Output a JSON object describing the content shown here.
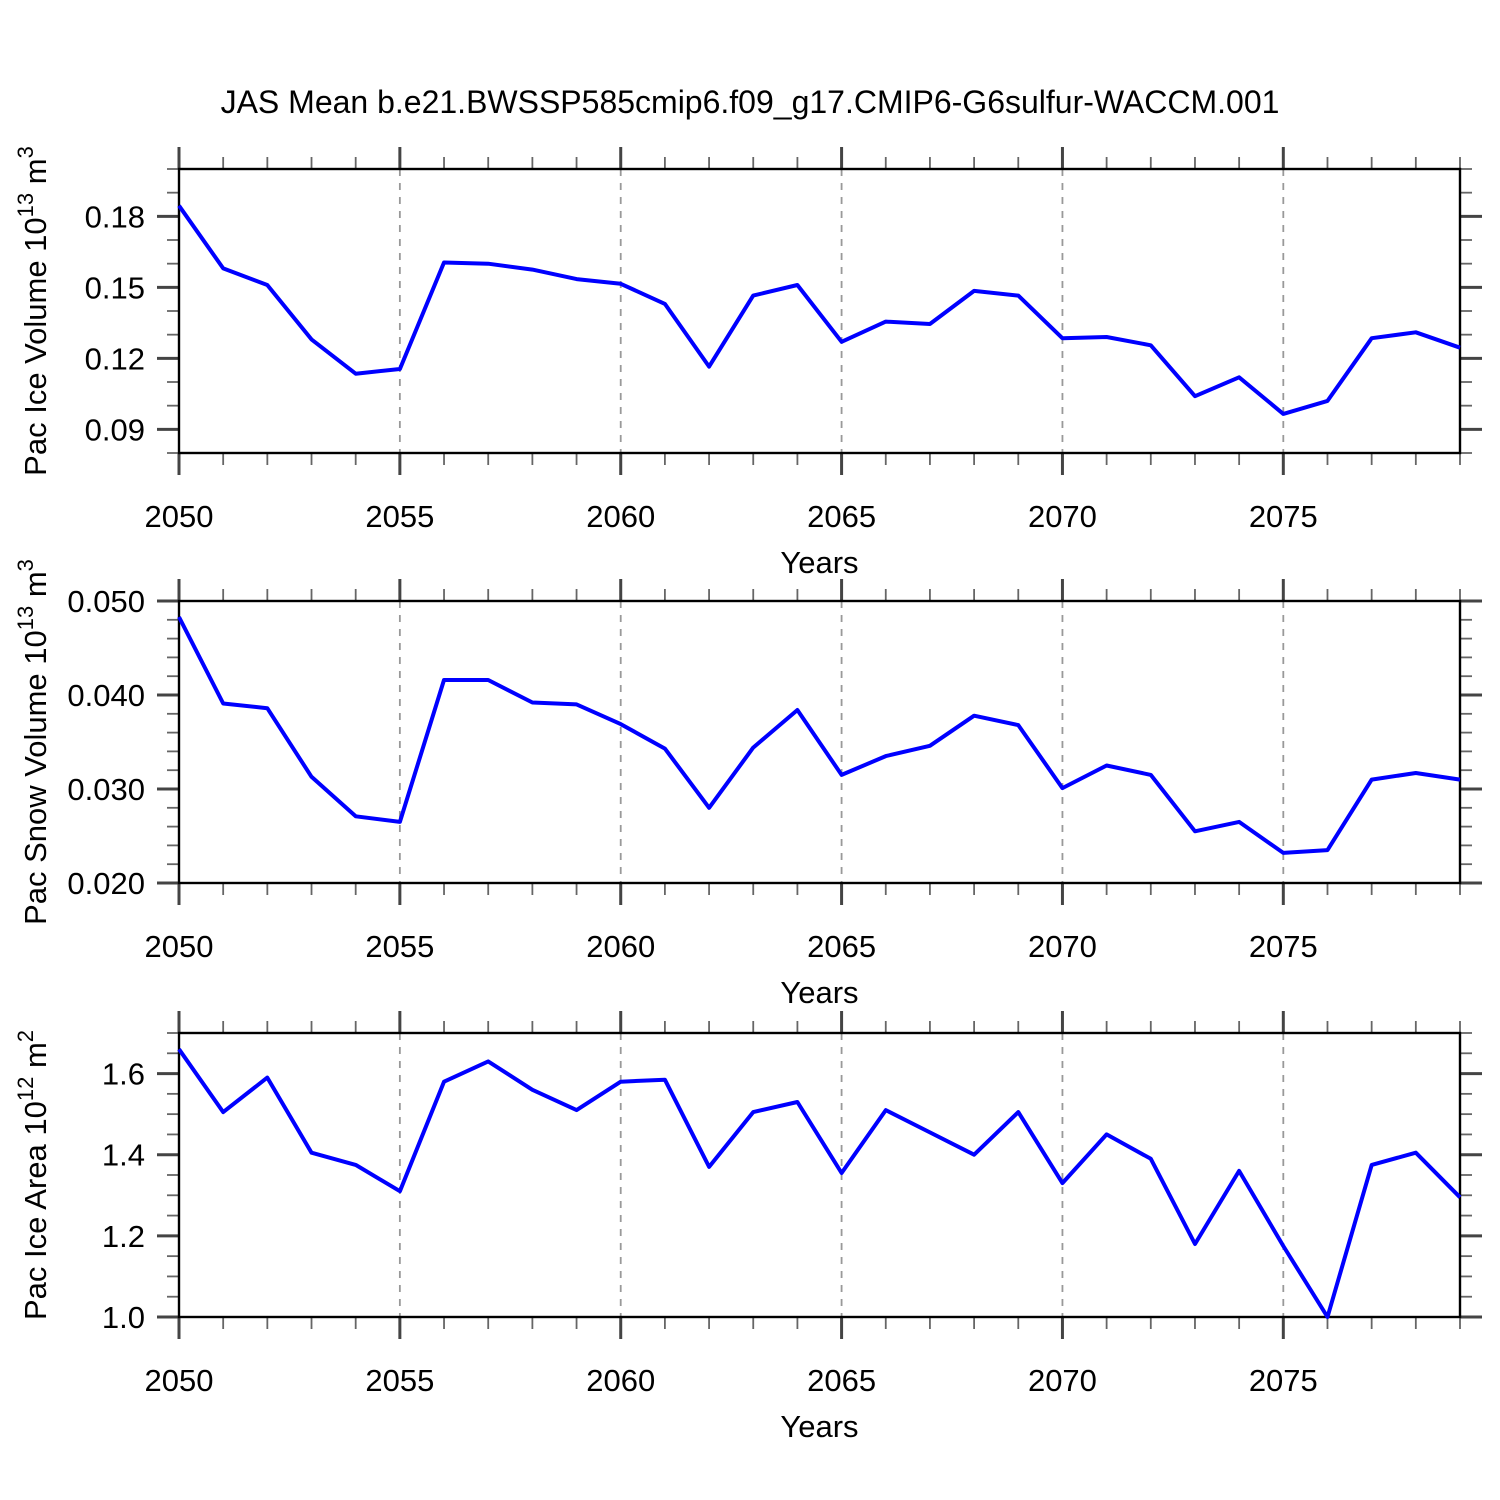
{
  "title": "JAS Mean b.e21.BWSSP585cmip6.f09_g17.CMIP6-G6sulfur-WACCM.001",
  "chart_data": {
    "type": "line",
    "title": "JAS Mean b.e21.BWSSP585cmip6.f09_g17.CMIP6-G6sulfur-WACCM.001",
    "line_color": "#0000ff",
    "gridline_color": "#999999",
    "axis_color": "#000000",
    "legend": "none",
    "grid": "vertical-dashed-at-5yr",
    "x": {
      "label": "Years",
      "start": 2050,
      "end": 2079,
      "minor_step": 1,
      "major_ticks": [
        2050,
        2055,
        2060,
        2065,
        2070,
        2075
      ],
      "major_tick_labels": [
        "2050",
        "2055",
        "2060",
        "2065",
        "2070",
        "2075"
      ],
      "gridlines": [
        2055,
        2060,
        2065,
        2070,
        2075
      ]
    },
    "years": [
      2050,
      2051,
      2052,
      2053,
      2054,
      2055,
      2056,
      2057,
      2058,
      2059,
      2060,
      2061,
      2062,
      2063,
      2064,
      2065,
      2066,
      2067,
      2068,
      2069,
      2070,
      2071,
      2072,
      2073,
      2074,
      2075,
      2076,
      2077,
      2078,
      2079
    ],
    "panels": [
      {
        "name": "pac-ice-volume",
        "ylabel": "Pac Ice Volume 10^13 m^3",
        "xlabel": "Years",
        "ylim": [
          0.08,
          0.2
        ],
        "ytick_values": [
          0.09,
          0.12,
          0.15,
          0.18
        ],
        "ytick_labels": [
          "0.09",
          "0.12",
          "0.15",
          "0.18"
        ],
        "yminor_step": 0.01,
        "values": [
          0.1845,
          0.158,
          0.151,
          0.128,
          0.1135,
          0.1155,
          0.1605,
          0.16,
          0.1575,
          0.1535,
          0.1515,
          0.143,
          0.1165,
          0.1465,
          0.151,
          0.127,
          0.1355,
          0.1345,
          0.1485,
          0.1465,
          0.1285,
          0.129,
          0.1255,
          0.104,
          0.112,
          0.0965,
          0.102,
          0.1285,
          0.131,
          0.1245
        ]
      },
      {
        "name": "pac-snow-volume",
        "ylabel": "Pac Snow Volume 10^13 m^3",
        "xlabel": "Years",
        "ylim": [
          0.02,
          0.05
        ],
        "ytick_values": [
          0.02,
          0.03,
          0.04,
          0.05
        ],
        "ytick_labels": [
          "0.020",
          "0.030",
          "0.040",
          "0.050"
        ],
        "yminor_step": 0.002,
        "values": [
          0.0483,
          0.0391,
          0.0386,
          0.0313,
          0.0271,
          0.0265,
          0.0416,
          0.0416,
          0.0392,
          0.039,
          0.0369,
          0.0343,
          0.028,
          0.0344,
          0.0384,
          0.0315,
          0.0335,
          0.0346,
          0.0378,
          0.0368,
          0.0301,
          0.0325,
          0.0315,
          0.0255,
          0.0265,
          0.0232,
          0.0235,
          0.031,
          0.0317,
          0.031
        ]
      },
      {
        "name": "pac-ice-area",
        "ylabel": "Pac Ice Area 10^12 m^2",
        "xlabel": "Years",
        "ylim": [
          1.0,
          1.7
        ],
        "ytick_values": [
          1.0,
          1.2,
          1.4,
          1.6
        ],
        "ytick_labels": [
          "1.0",
          "1.2",
          "1.4",
          "1.6"
        ],
        "yminor_step": 0.05,
        "values": [
          1.66,
          1.505,
          1.59,
          1.405,
          1.375,
          1.31,
          1.58,
          1.63,
          1.56,
          1.51,
          1.58,
          1.585,
          1.37,
          1.505,
          1.53,
          1.355,
          1.51,
          1.455,
          1.4,
          1.505,
          1.33,
          1.45,
          1.39,
          1.18,
          1.36,
          1.175,
          1.0,
          1.375,
          1.405,
          1.295
        ]
      }
    ]
  }
}
